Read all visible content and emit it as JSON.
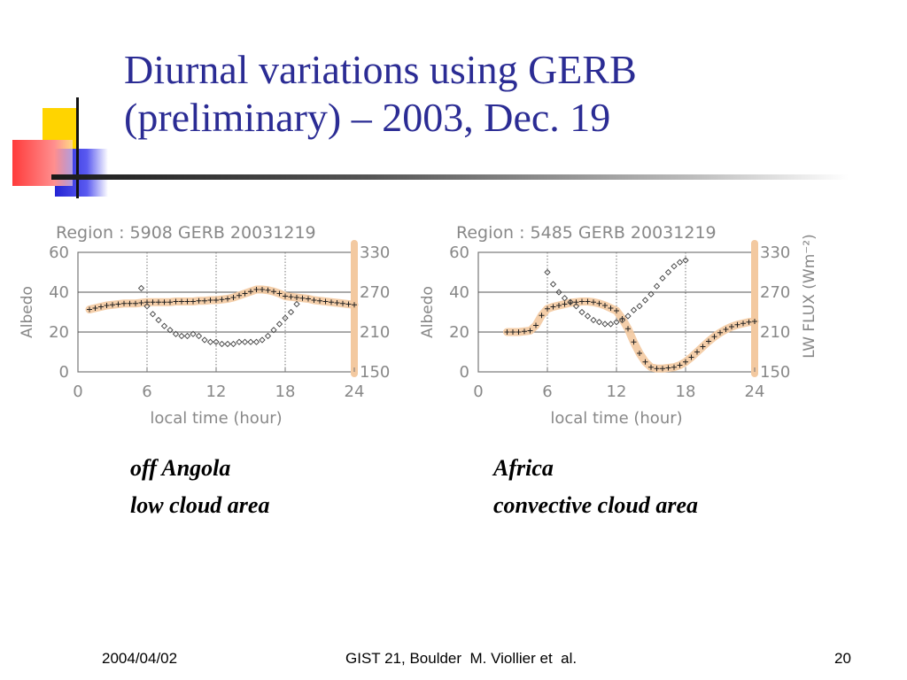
{
  "slide": {
    "title_line1": "Diurnal variations using GERB",
    "title_line2": "(preliminary) – 2003, Dec. 19",
    "caption_left_line1": "off Angola",
    "caption_left_line2": "low cloud area",
    "caption_right_line1": "Africa",
    "caption_right_line2": "convective cloud area",
    "footer_date": "2004/04/02",
    "footer_center": "GIST 21, Boulder  M. Viollier et  al.",
    "footer_page": "20"
  },
  "colors": {
    "title": "#2b2c94",
    "accent_yellow": "#ffd400",
    "accent_blue": "#2424d4",
    "accent_red": "#ff3b3b",
    "highlight": "#f3c9a0",
    "axis_text": "#888888"
  },
  "chart_data": [
    {
      "type": "scatter",
      "title": "Region :  5908 GERB 20031219",
      "xlabel": "local time (hour)",
      "ylabel": "Albedo",
      "y2label": "",
      "xlim": [
        0,
        24
      ],
      "ylim": [
        0,
        60
      ],
      "y2lim": [
        150,
        330
      ],
      "xticks": [
        "0",
        "6",
        "12",
        "18",
        "24"
      ],
      "yticks": [
        "0",
        "20",
        "40",
        "60"
      ],
      "y2ticks": [
        "150",
        "210",
        "270",
        "330"
      ],
      "grid_y": [
        20,
        40
      ],
      "vlines": [
        6,
        12,
        18
      ],
      "series": [
        {
          "marker": "plus",
          "axis": "y2",
          "x": [
            1,
            1.5,
            2,
            2.5,
            3,
            3.5,
            4,
            4.5,
            5,
            5.5,
            6,
            6.5,
            7,
            7.5,
            8,
            8.5,
            9,
            9.5,
            10,
            10.5,
            11,
            11.5,
            12,
            12.5,
            13,
            13.5,
            14,
            14.5,
            15,
            15.5,
            16,
            16.5,
            17,
            17.5,
            18,
            18.5,
            19,
            19.5,
            20,
            20.5,
            21,
            21.5,
            22,
            22.5,
            23,
            23.5,
            24
          ],
          "y": [
            244,
            246,
            248,
            250,
            251,
            252,
            253,
            253,
            253,
            254,
            255,
            255,
            255,
            255,
            255,
            256,
            256,
            256,
            256,
            257,
            257,
            258,
            258,
            259,
            260,
            262,
            265,
            268,
            271,
            274,
            274,
            273,
            271,
            268,
            264,
            263,
            262,
            261,
            260,
            258,
            257,
            256,
            255,
            254,
            253,
            252,
            251
          ]
        },
        {
          "marker": "diamond",
          "axis": "y",
          "x": [
            5.5,
            6,
            6.5,
            7,
            7.5,
            8,
            8.5,
            9,
            9.5,
            10,
            10.5,
            11,
            11.5,
            12,
            12.5,
            13,
            13.5,
            14,
            14.5,
            15,
            15.5,
            16,
            16.5,
            17,
            17.5,
            18,
            18.5,
            19
          ],
          "y": [
            42,
            33,
            29,
            26,
            23,
            21,
            19,
            18,
            18,
            19,
            18,
            16,
            15,
            15,
            14,
            14,
            14,
            15,
            15,
            15,
            15,
            16,
            18,
            21,
            24,
            27,
            30,
            34
          ]
        }
      ]
    },
    {
      "type": "scatter",
      "title": "Region :  5485 GERB 20031219",
      "xlabel": "local time (hour)",
      "ylabel": "Albedo",
      "y2label": "LW FLUX (Wm⁻²)",
      "xlim": [
        0,
        24
      ],
      "ylim": [
        0,
        60
      ],
      "y2lim": [
        150,
        330
      ],
      "xticks": [
        "0",
        "6",
        "12",
        "18",
        "24"
      ],
      "yticks": [
        "0",
        "20",
        "40",
        "60"
      ],
      "y2ticks": [
        "150",
        "210",
        "270",
        "330"
      ],
      "grid_y": [
        20,
        40
      ],
      "vlines": [
        6,
        12,
        18
      ],
      "series": [
        {
          "marker": "plus",
          "axis": "y2",
          "x": [
            2.5,
            3,
            3.5,
            4,
            4.5,
            5,
            5.5,
            6,
            6.5,
            7,
            7.5,
            8,
            8.5,
            9,
            9.5,
            10,
            10.5,
            11,
            11.5,
            12,
            12.5,
            13,
            13.5,
            14,
            14.5,
            15,
            15.5,
            16,
            16.5,
            17,
            17.5,
            18,
            18.5,
            19,
            19.5,
            20,
            20.5,
            21,
            21.5,
            22,
            22.5,
            23,
            23.5,
            24
          ],
          "y": [
            210,
            210,
            210,
            211,
            212,
            220,
            235,
            245,
            248,
            250,
            252,
            254,
            255,
            256,
            256,
            255,
            253,
            250,
            246,
            242,
            230,
            215,
            195,
            178,
            165,
            157,
            155,
            155,
            156,
            157,
            160,
            165,
            172,
            180,
            188,
            196,
            203,
            209,
            214,
            218,
            221,
            223,
            225,
            226
          ]
        },
        {
          "marker": "diamond",
          "axis": "y",
          "x": [
            6,
            6.5,
            7,
            7.5,
            8,
            8.5,
            9,
            9.5,
            10,
            10.5,
            11,
            11.5,
            12,
            12.5,
            13,
            13.5,
            14,
            14.5,
            15,
            15.5,
            16,
            16.5,
            17,
            17.5,
            18
          ],
          "y": [
            50,
            44,
            40,
            37,
            35,
            33,
            30,
            28,
            26,
            25,
            24,
            24,
            25,
            26,
            28,
            31,
            33,
            36,
            39,
            43,
            47,
            50,
            53,
            55,
            56
          ]
        }
      ]
    }
  ]
}
